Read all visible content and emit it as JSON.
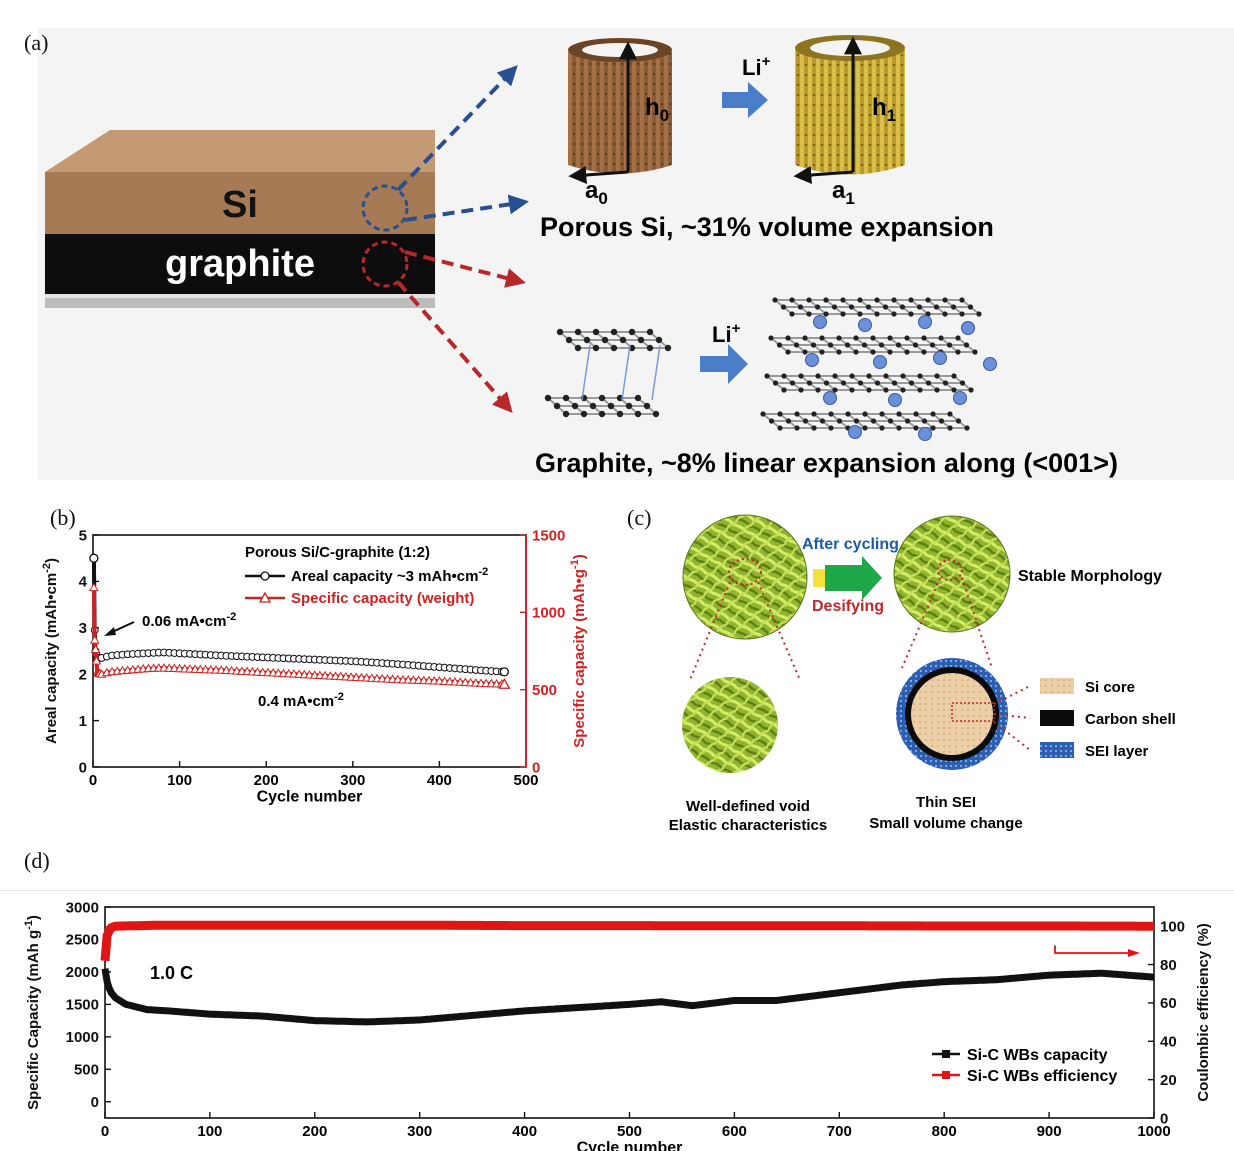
{
  "panel_a": {
    "label": "(a)",
    "si_layer": "Si",
    "graphite_layer": "graphite",
    "li_label_top": "Li",
    "li_label_bottom": "Li",
    "li_superscript": "+",
    "h0": "h",
    "h0_sub": "0",
    "a0": "a",
    "a0_sub": "0",
    "h1": "h",
    "h1_sub": "1",
    "a1": "a",
    "a1_sub": "1",
    "porous_caption": "Porous Si, ~31%  volume expansion",
    "graphite_caption": "Graphite, ~8% linear expansion along (<001>)",
    "colors": {
      "si": "#a67a55",
      "graphite": "#0d0d0d",
      "blue_arrow": "#2a4f8f",
      "red_arrow": "#b8282a",
      "li_arrow": "#4a7ec8",
      "gold": "#c9ae3c",
      "atom_blue": "#6b8fd9"
    }
  },
  "panel_b": {
    "label": "(b)",
    "legend_title": "Porous Si/C-graphite (1:2)",
    "legend_areal": "Areal capacity ~3 mAh•cm",
    "legend_areal_sup": "-2",
    "legend_specific": "Specific capacity (weight)",
    "annotation_low": "0.06 mA•cm",
    "annotation_low_sup": "-2",
    "annotation_high": "0.4 mA•cm",
    "annotation_high_sup": "-2",
    "chart_data": {
      "type": "scatter",
      "x_label": "Cycle number",
      "y_label_left": "Areal capacity (mAh•cm",
      "y_label_left_sup": "-2",
      "y_label_left_end": ")",
      "y_label_right": "Specific capacity (mAh•g",
      "y_label_right_sup": "-1",
      "y_label_right_end": ")",
      "xlim": [
        0,
        500
      ],
      "ylim_left": [
        0,
        5
      ],
      "ylim_right": [
        0,
        1500
      ],
      "x_ticks": [
        "0",
        "100",
        "200",
        "300",
        "400",
        "500"
      ],
      "y_ticks_left": [
        "0",
        "1",
        "2",
        "3",
        "4",
        "5"
      ],
      "y_ticks_right": [
        "0",
        "500",
        "1000",
        "1500"
      ],
      "series": [
        {
          "name": "Areal capacity ~3 mAh•cm-2",
          "axis": "left",
          "color": "#111111",
          "x": [
            1,
            2,
            3,
            5,
            10,
            20,
            40,
            60,
            80,
            100,
            150,
            200,
            250,
            300,
            350,
            400,
            450,
            475
          ],
          "y": [
            4.5,
            2.95,
            2.5,
            2.35,
            2.35,
            2.4,
            2.43,
            2.45,
            2.47,
            2.45,
            2.4,
            2.36,
            2.32,
            2.28,
            2.22,
            2.15,
            2.08,
            2.05
          ]
        },
        {
          "name": "Specific capacity (weight)",
          "axis": "right",
          "color": "#d42020",
          "x": [
            1,
            2,
            3,
            5,
            10,
            20,
            40,
            60,
            80,
            100,
            150,
            200,
            250,
            300,
            350,
            400,
            450,
            475
          ],
          "y": [
            1160,
            820,
            760,
            610,
            600,
            615,
            625,
            635,
            640,
            635,
            625,
            610,
            595,
            580,
            565,
            555,
            540,
            535
          ]
        }
      ]
    }
  },
  "panel_c": {
    "label": "(c)",
    "after_cycling": "After cycling",
    "desifying": "Desifying",
    "stable_morphology": "Stable Morphology",
    "si_core": "Si core",
    "carbon_shell": "Carbon shell",
    "sei_layer": "SEI layer",
    "caption_left_1": "Well-defined void",
    "caption_left_2": "Elastic characteristics",
    "caption_right_1": "Thin SEI",
    "caption_right_2": "Small volume change",
    "colors": {
      "ball": "#9cc13a",
      "ball_dark": "#6e8e1f",
      "arrow_green": "#1ea84a",
      "arrow_yellow": "#f2e23a",
      "blue_text": "#1c5aa8",
      "red_text": "#c0282a",
      "si_core": "#e8c9a0",
      "sei": "#4a7ac8"
    }
  },
  "panel_d": {
    "label": "(d)",
    "rate_label": "1.0 C",
    "legend_capacity": "Si-C WBs capacity",
    "legend_efficiency": "Si-C WBs efficiency",
    "chart_data": {
      "type": "line",
      "x_label": "Cycle number",
      "y_label_left": "Specific Capacity (mAh g",
      "y_label_left_sup": "-1",
      "y_label_left_end": ")",
      "y_label_right": "Coulombic efficiency (%)",
      "xlim": [
        0,
        1000
      ],
      "ylim_left": [
        -250,
        3000
      ],
      "ylim_right": [
        0,
        110
      ],
      "x_ticks": [
        "0",
        "100",
        "200",
        "300",
        "400",
        "500",
        "600",
        "700",
        "800",
        "900",
        "1000"
      ],
      "y_ticks_left": [
        "0",
        "500",
        "1000",
        "1500",
        "2000",
        "2500",
        "3000"
      ],
      "y_ticks_right": [
        "0",
        "20",
        "40",
        "60",
        "80",
        "100"
      ],
      "series": [
        {
          "name": "Si-C WBs capacity",
          "axis": "left",
          "color": "#111111",
          "x": [
            0,
            2,
            5,
            10,
            20,
            40,
            60,
            100,
            150,
            200,
            250,
            300,
            350,
            400,
            450,
            500,
            530,
            560,
            600,
            640,
            680,
            720,
            760,
            800,
            850,
            900,
            950,
            1000
          ],
          "y": [
            2050,
            1850,
            1700,
            1600,
            1500,
            1420,
            1400,
            1350,
            1320,
            1250,
            1230,
            1260,
            1330,
            1400,
            1450,
            1500,
            1540,
            1480,
            1560,
            1560,
            1640,
            1720,
            1800,
            1850,
            1880,
            1950,
            1980,
            1920
          ]
        },
        {
          "name": "Si-C WBs efficiency",
          "axis": "right",
          "color": "#e01515",
          "x": [
            0,
            2,
            5,
            10,
            50,
            100,
            200,
            300,
            400,
            500,
            600,
            700,
            800,
            900,
            1000
          ],
          "y": [
            82,
            95,
            99,
            100,
            100.5,
            100.5,
            100.5,
            100.5,
            100.3,
            100.3,
            100.2,
            100.2,
            100.1,
            100.1,
            100.0
          ]
        }
      ]
    }
  }
}
